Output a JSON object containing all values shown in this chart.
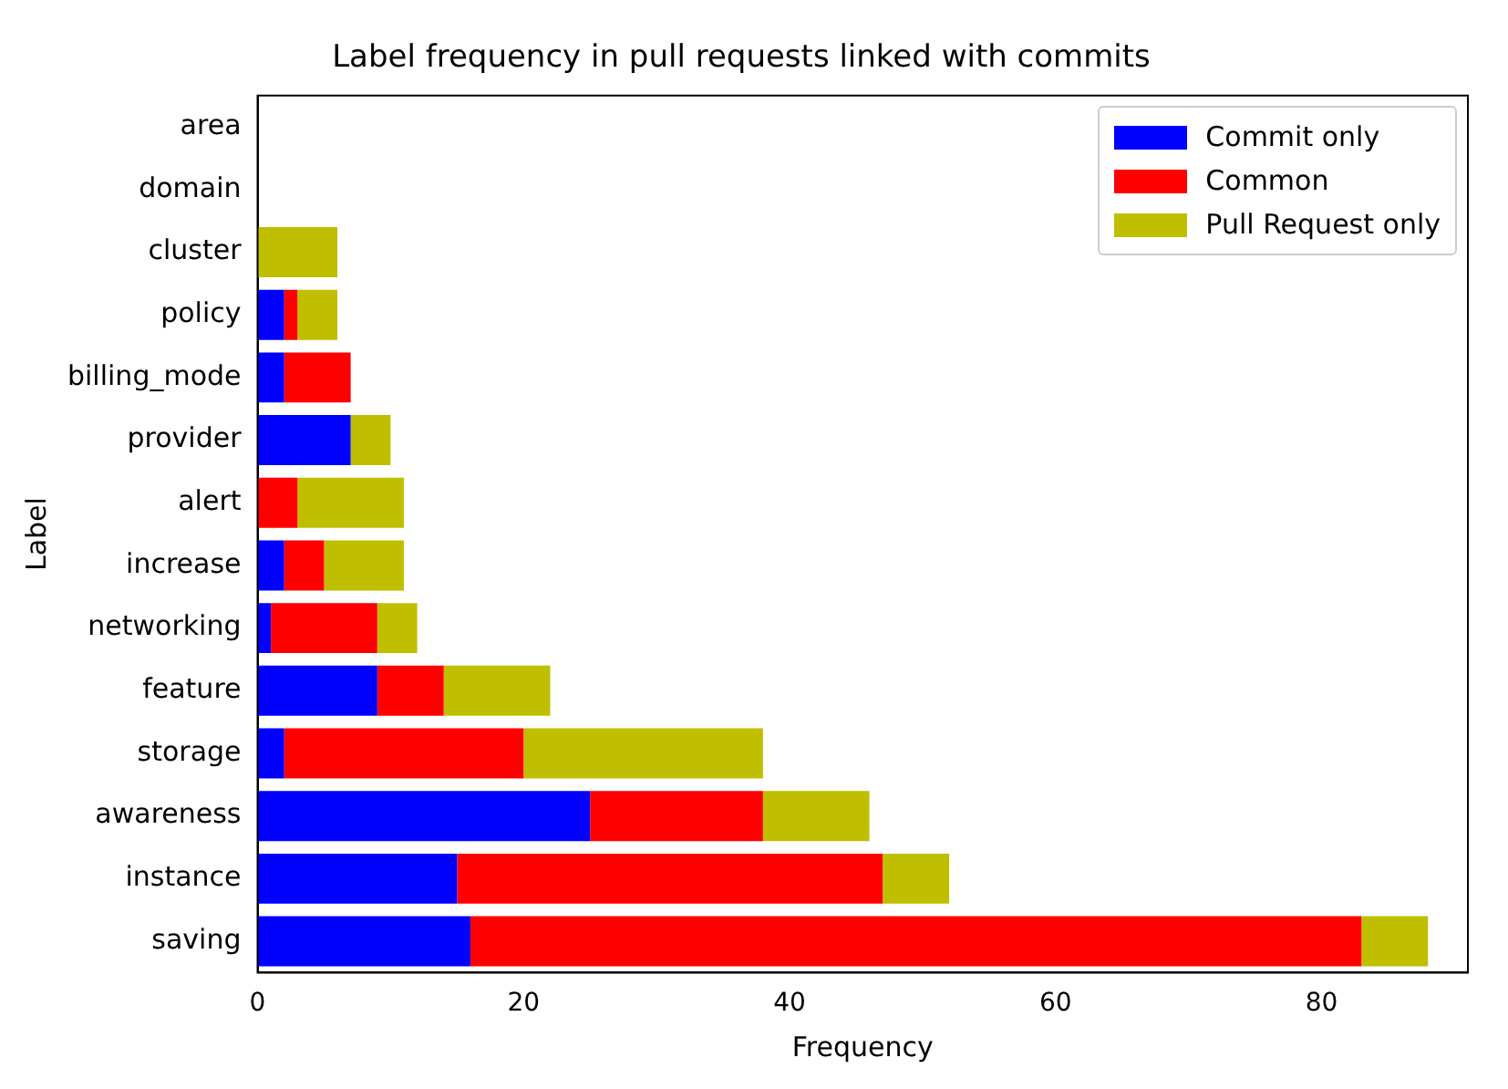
{
  "chart_data": {
    "type": "bar",
    "orientation": "horizontal",
    "stacked": true,
    "title": "Label frequency in pull requests linked with commits",
    "xlabel": "Frequency",
    "ylabel": "Label",
    "categories": [
      "area",
      "domain",
      "cluster",
      "policy",
      "billing_mode",
      "provider",
      "alert",
      "increase",
      "networking",
      "feature",
      "storage",
      "awareness",
      "instance",
      "saving"
    ],
    "series": [
      {
        "name": "Commit only",
        "color": "#0000ff",
        "values": [
          0,
          0,
          0,
          2,
          2,
          7,
          0,
          2,
          1,
          9,
          2,
          25,
          15,
          16
        ]
      },
      {
        "name": "Common",
        "color": "#ff0000",
        "values": [
          0,
          0,
          0,
          1,
          5,
          0,
          3,
          3,
          8,
          5,
          18,
          13,
          32,
          67
        ]
      },
      {
        "name": "Pull Request only",
        "color": "#bfbf00",
        "values": [
          0,
          0,
          6,
          3,
          0,
          3,
          8,
          6,
          3,
          8,
          18,
          8,
          5,
          5
        ]
      }
    ],
    "xlim": [
      0,
      91
    ],
    "xticks": [
      0,
      20,
      40,
      60,
      80
    ],
    "grid": false,
    "legend": "top right"
  }
}
